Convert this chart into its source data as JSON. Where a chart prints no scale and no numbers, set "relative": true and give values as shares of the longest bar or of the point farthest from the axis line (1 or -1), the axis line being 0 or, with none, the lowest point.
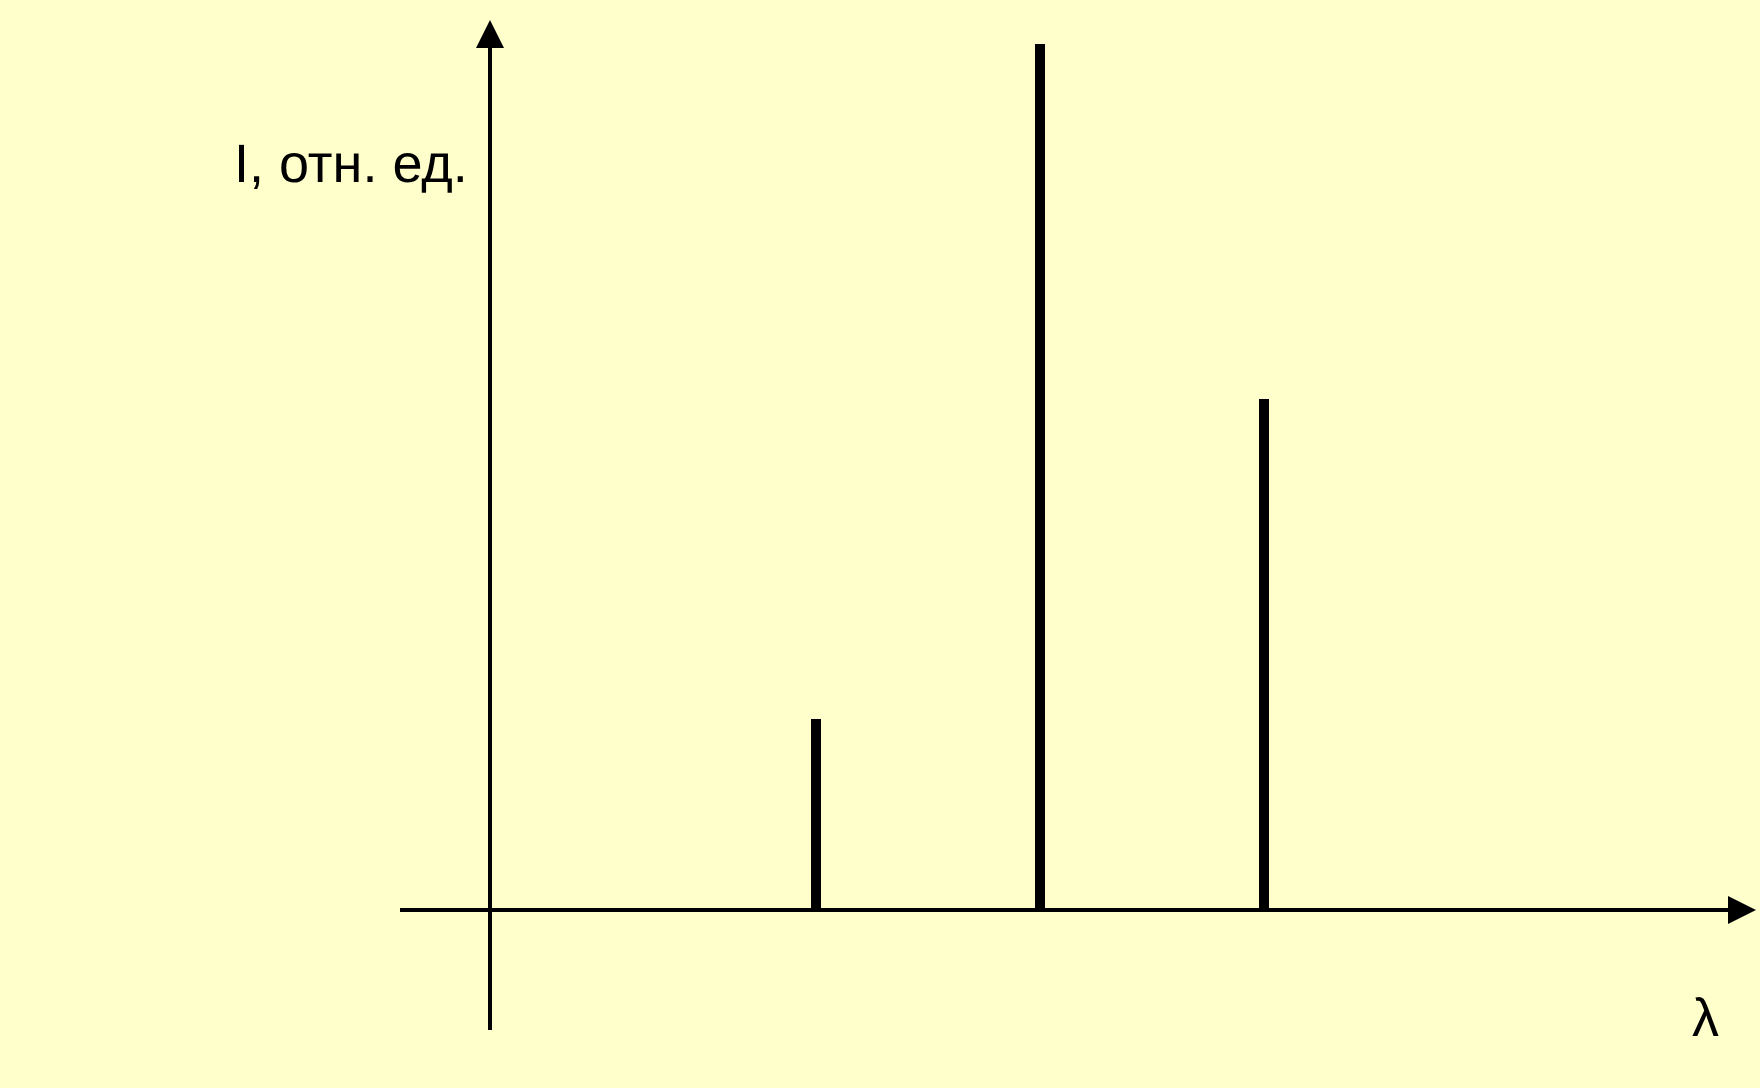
{
  "chart_data": {
    "type": "bar",
    "relative": true,
    "annotations": [
      "I, отн. ед.",
      "λ"
    ],
    "categories": [
      null,
      null,
      null
    ],
    "series": [
      {
        "color": "#000000",
        "values": [
          0.22,
          1,
          0.59
        ]
      }
    ],
    "grid": false
  }
}
